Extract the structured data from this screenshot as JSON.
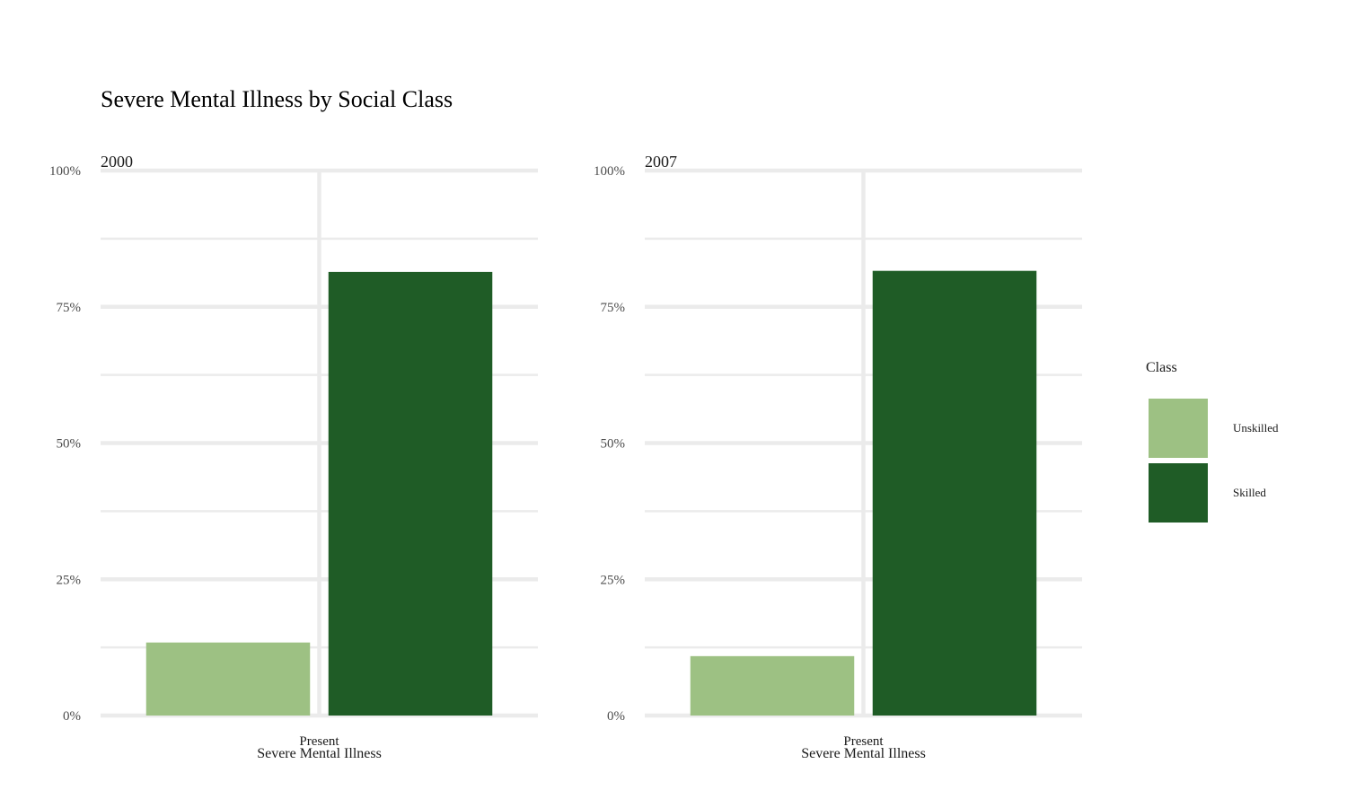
{
  "chart_data": {
    "type": "bar",
    "title": "Severe Mental Illness by Social Class",
    "xlabel": "Severe Mental Illness",
    "ylabel": "",
    "y_ticks": [
      "0%",
      "25%",
      "50%",
      "75%",
      "100%"
    ],
    "ylim": [
      0,
      100
    ],
    "grid": true,
    "legend": {
      "title": "Class",
      "position": "right",
      "entries": [
        {
          "label": "Unskilled",
          "color": "#9dc183"
        },
        {
          "label": "Skilled",
          "color": "#1f5c26"
        }
      ]
    },
    "panels": [
      {
        "label": "2000",
        "categories": [
          "Present"
        ],
        "series": [
          {
            "name": "Unskilled",
            "values": [
              13.4
            ]
          },
          {
            "name": "Skilled",
            "values": [
              81.4
            ]
          }
        ]
      },
      {
        "label": "2007",
        "categories": [
          "Present"
        ],
        "series": [
          {
            "name": "Unskilled",
            "values": [
              10.9
            ]
          },
          {
            "name": "Skilled",
            "values": [
              81.6
            ]
          }
        ]
      }
    ]
  }
}
